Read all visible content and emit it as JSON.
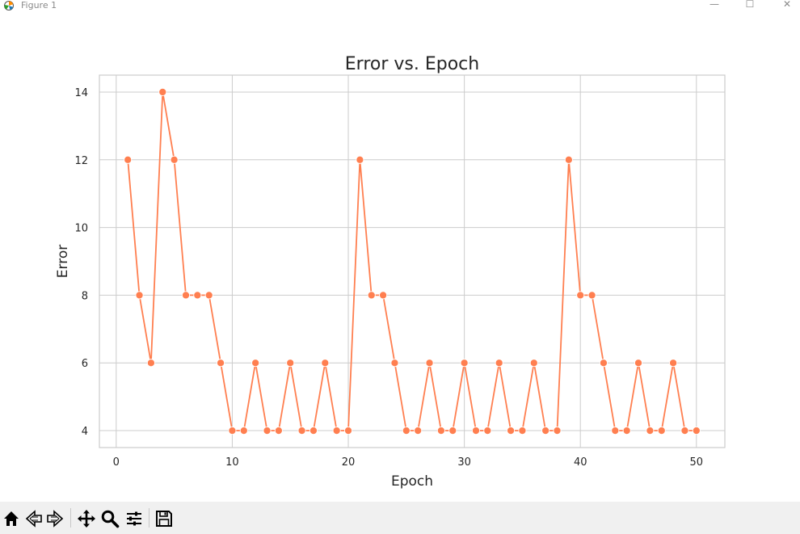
{
  "window": {
    "title": "Figure 1",
    "controls": {
      "minimize": "—",
      "maximize": "☐",
      "close": "✕"
    }
  },
  "toolbar": {
    "buttons": [
      "home-icon",
      "back-icon",
      "forward-icon",
      "pan-icon",
      "zoom-icon",
      "configure-subplots-icon",
      "save-icon"
    ]
  },
  "colors": {
    "line": "#ff7f50",
    "grid": "#cccccc",
    "axes_edge": "#cccccc",
    "toolbar_bg": "#f0f0f0"
  },
  "chart_data": {
    "type": "line",
    "title": "Error vs. Epoch",
    "xlabel": "Epoch",
    "ylabel": "Error",
    "xlim": [
      -1.45,
      52.45
    ],
    "ylim": [
      3.5,
      14.5
    ],
    "xticks": [
      0,
      10,
      20,
      30,
      40,
      50
    ],
    "xtick_labels": [
      "0",
      "10",
      "20",
      "30",
      "40",
      "50"
    ],
    "yticks": [
      4,
      6,
      8,
      10,
      12,
      14
    ],
    "ytick_labels": [
      "4",
      "6",
      "8",
      "10",
      "12",
      "14"
    ],
    "grid": true,
    "marker": "o",
    "series": [
      {
        "x": [
          1,
          2,
          3,
          4,
          5,
          6,
          7,
          8,
          9,
          10,
          11,
          12,
          13,
          14,
          15,
          16,
          17,
          18,
          19,
          20,
          21,
          22,
          23,
          24,
          25,
          26,
          27,
          28,
          29,
          30,
          31,
          32,
          33,
          34,
          35,
          36,
          37,
          38,
          39,
          40,
          41,
          42,
          43,
          44,
          45,
          46,
          47,
          48,
          49,
          50
        ],
        "values": [
          12,
          8,
          6,
          14,
          12,
          8,
          8,
          8,
          6,
          4,
          4,
          6,
          4,
          4,
          6,
          4,
          4,
          6,
          4,
          4,
          12,
          8,
          8,
          6,
          4,
          4,
          6,
          4,
          4,
          6,
          4,
          4,
          6,
          4,
          4,
          6,
          4,
          4,
          12,
          8,
          8,
          6,
          4,
          4,
          6,
          4,
          4,
          6,
          4,
          4
        ]
      }
    ]
  }
}
